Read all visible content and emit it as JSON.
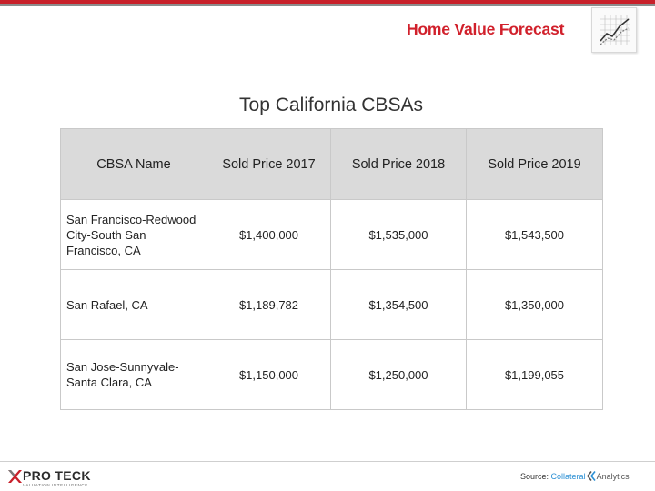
{
  "header": {
    "title": "Home Value Forecast",
    "icon": "line-chart-icon",
    "accent_color": "#d1202b"
  },
  "slide": {
    "title": "Top California CBSAs"
  },
  "table": {
    "headers": [
      "CBSA Name",
      "Sold Price 2017",
      "Sold Price 2018",
      "Sold Price 2019"
    ],
    "rows": [
      {
        "name": "San Francisco-Redwood City-South San Francisco, CA",
        "y2017": "$1,400,000",
        "y2018": "$1,535,000",
        "y2019": "$1,543,500"
      },
      {
        "name": "San Rafael, CA",
        "y2017": "$1,189,782",
        "y2018": "$1,354,500",
        "y2019": "$1,350,000"
      },
      {
        "name": "San Jose-Sunnyvale-Santa Clara, CA",
        "y2017": "$1,150,000",
        "y2018": "$1,250,000",
        "y2019": "$1,199,055"
      }
    ]
  },
  "footer": {
    "logo_text": "PRO TECK",
    "logo_subtext": "VALUATION INTELLIGENCE",
    "source_label": "Source:",
    "source_brand_a": "Collateral",
    "source_brand_b": "Analytics"
  }
}
